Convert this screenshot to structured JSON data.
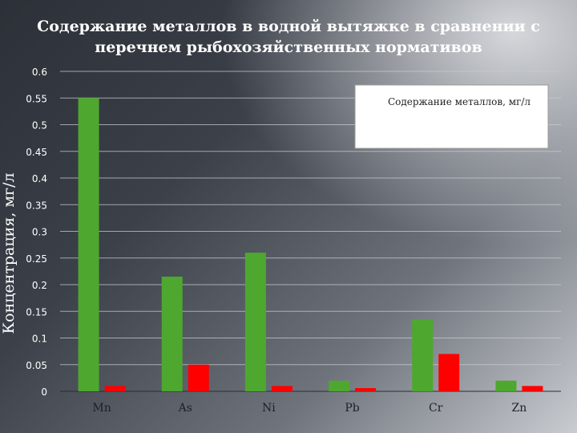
{
  "title_lines": [
    "Содержание металлов в водной вытяжке в сравнении с",
    "перечнем рыбохозяйственных нормативов"
  ],
  "chart_data": {
    "type": "bar",
    "title": "Содержание металлов в водной вытяжке в сравнении с перечнем рыбохозяйственных нормативов",
    "xlabel": "",
    "ylabel": "Концентрация, мг/л",
    "categories": [
      "Mn",
      "As",
      "Ni",
      "Pb",
      "Cr",
      "Zn"
    ],
    "ylim": [
      0,
      0.6
    ],
    "yticks": [
      "0",
      "0.05",
      "0.1",
      "0.15",
      "0.2",
      "0.25",
      "0.3",
      "0.35",
      "0.4",
      "0.45",
      "0.5",
      "0.55",
      "0.6"
    ],
    "grid": true,
    "legend_position": "top-right",
    "legend_label": "Содержание металлов, мг/л",
    "series": [
      {
        "name": "Содержание металлов, мг/л",
        "color": "#4ea72e",
        "values": [
          0.55,
          0.215,
          0.26,
          0.02,
          0.135,
          0.02
        ]
      },
      {
        "color": "#ff0000",
        "values": [
          0.01,
          0.05,
          0.01,
          0.006,
          0.07,
          0.01
        ]
      }
    ]
  }
}
